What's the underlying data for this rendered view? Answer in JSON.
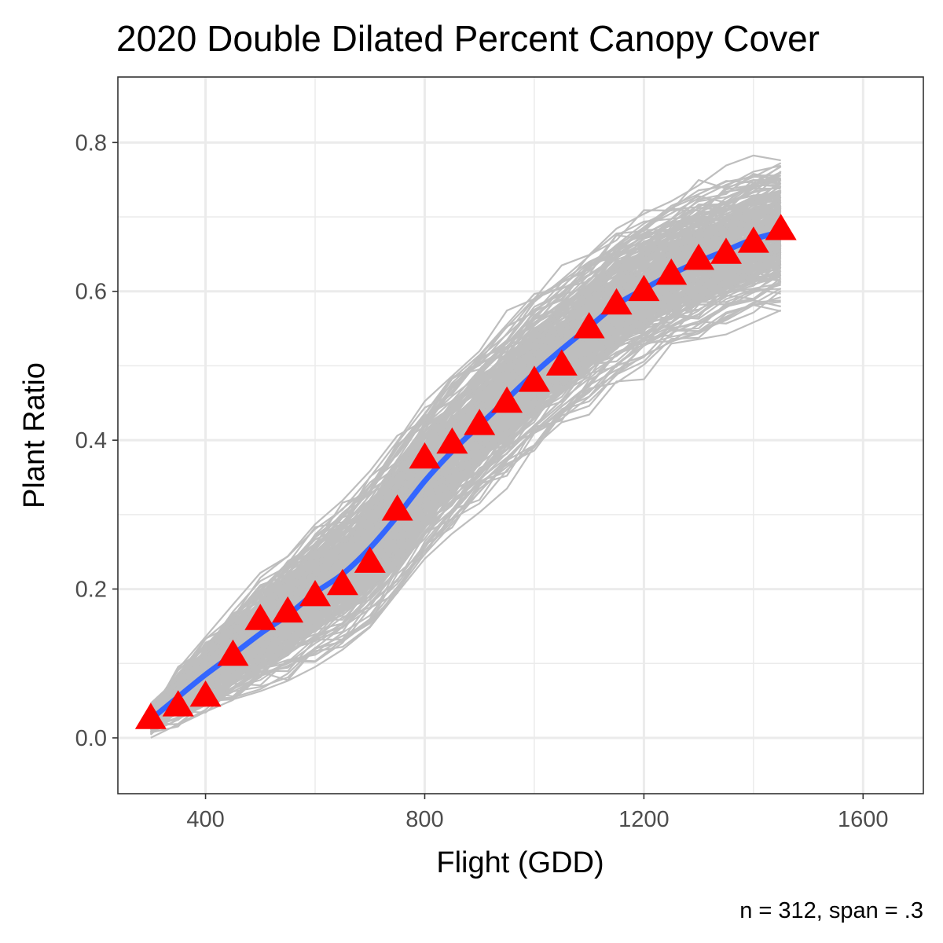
{
  "chart_data": {
    "type": "line",
    "title": "2020 Double Dilated Percent Canopy Cover",
    "xlabel": "Flight (GDD)",
    "ylabel": "Plant Ratio",
    "caption": "n = 312, span = .3",
    "xlim": [
      240,
      1710
    ],
    "ylim": [
      -0.075,
      0.888
    ],
    "x_ticks": [
      400,
      800,
      1200,
      1600
    ],
    "y_ticks": [
      0.0,
      0.2,
      0.4,
      0.6,
      0.8
    ],
    "x_tick_labels": [
      "400",
      "800",
      "1200",
      "1600"
    ],
    "y_tick_labels": [
      "0.0",
      "0.2",
      "0.4",
      "0.6",
      "0.8"
    ],
    "grid": true,
    "n_individual_lines": 312,
    "colors": {
      "individual_lines": "#bebebe",
      "smooth": "#3366ff",
      "mean_points": "#ff0000",
      "grid": "#ebebeb",
      "panel_border": "#333333"
    },
    "x": [
      300,
      350,
      400,
      450,
      500,
      550,
      600,
      650,
      700,
      750,
      800,
      850,
      900,
      950,
      1000,
      1050,
      1100,
      1150,
      1200,
      1250,
      1300,
      1350,
      1400,
      1450
    ],
    "series": [
      {
        "marker": "triangle",
        "values": [
          0.025,
          0.042,
          0.055,
          0.11,
          0.158,
          0.168,
          0.19,
          0.205,
          0.235,
          0.305,
          0.375,
          0.395,
          0.42,
          0.45,
          0.478,
          0.5,
          0.55,
          0.582,
          0.6,
          0.622,
          0.642,
          0.65,
          0.665,
          0.682
        ]
      },
      {
        "style": "smooth",
        "values": [
          0.025,
          0.055,
          0.085,
          0.112,
          0.14,
          0.165,
          0.195,
          0.22,
          0.255,
          0.298,
          0.345,
          0.385,
          0.42,
          0.455,
          0.49,
          0.522,
          0.552,
          0.582,
          0.603,
          0.623,
          0.64,
          0.655,
          0.67,
          0.68
        ]
      }
    ]
  }
}
